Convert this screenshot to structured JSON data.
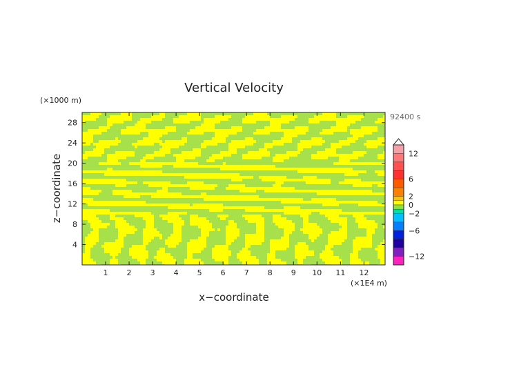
{
  "chart_data": {
    "type": "heatmap",
    "title": "Vertical Velocity",
    "xlabel": "x−coordinate",
    "ylabel": "z−coordinate",
    "x_unit": "(×1E4 m)",
    "y_unit": "(×1000 m)",
    "time_label": "92400 s",
    "xlim": [
      0,
      12.9
    ],
    "ylim": [
      0,
      30
    ],
    "x_ticks": [
      1,
      2,
      3,
      4,
      5,
      6,
      7,
      8,
      9,
      10,
      11,
      12
    ],
    "y_ticks": [
      4,
      8,
      12,
      16,
      20,
      24,
      28
    ],
    "colorbar": {
      "range": [
        -14,
        14
      ],
      "labels": [
        {
          "value": 12,
          "text": "12"
        },
        {
          "value": 6,
          "text": "6"
        },
        {
          "value": 2,
          "text": "2"
        },
        {
          "value": 0,
          "text": "0"
        },
        {
          "value": -2,
          "text": "−2"
        },
        {
          "value": -6,
          "text": "−6"
        },
        {
          "value": -12,
          "text": "−12"
        }
      ],
      "colors": {
        "pos_high": "#f5a0a8",
        "pos_mid": "#ff3030",
        "pos_low": "#ff8000",
        "near_zero_pos": "#ffff00",
        "near_zero_neg": "#90e040",
        "neg_low": "#00c0ff",
        "neg_mid": "#0020e0",
        "neg_high": "#8020c0",
        "neg_extreme": "#ff20c0"
      }
    },
    "field_colors": {
      "positive": "#ffff00",
      "negative": "#a6e04a"
    }
  }
}
